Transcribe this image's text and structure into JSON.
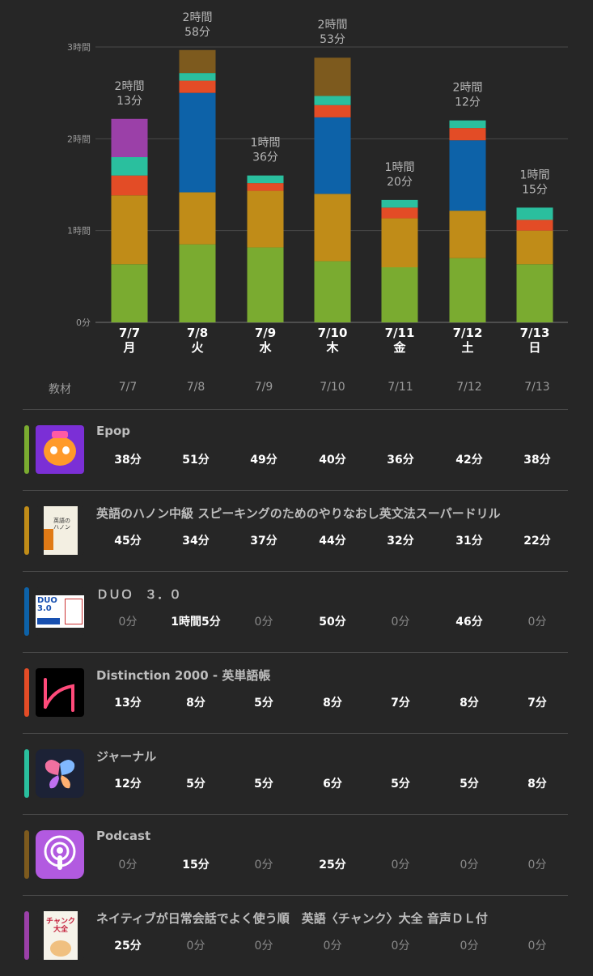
{
  "chart_data": {
    "type": "bar",
    "stacked": true,
    "categories": [
      "7/7",
      "7/8",
      "7/9",
      "7/10",
      "7/11",
      "7/12",
      "7/13"
    ],
    "weekdays": [
      "月",
      "火",
      "水",
      "木",
      "金",
      "土",
      "日"
    ],
    "y_ticks": [
      "0分",
      "1時間",
      "2時間",
      "3時間"
    ],
    "ylim": [
      0,
      180
    ],
    "totals": [
      [
        "2時間",
        "13分"
      ],
      [
        "2時間",
        "58分"
      ],
      [
        "1時間",
        "36分"
      ],
      [
        "2時間",
        "53分"
      ],
      [
        "1時間",
        "20分"
      ],
      [
        "2時間",
        "12分"
      ],
      [
        "1時間",
        "15分"
      ]
    ],
    "series": [
      {
        "color": "#7aab30",
        "values": [
          38,
          51,
          49,
          40,
          36,
          42,
          38
        ]
      },
      {
        "color": "#c08c18",
        "values": [
          45,
          34,
          37,
          44,
          32,
          31,
          22
        ]
      },
      {
        "color": "#0d62a8",
        "values": [
          0,
          65,
          0,
          50,
          0,
          46,
          0
        ]
      },
      {
        "color": "#e34c26",
        "values": [
          13,
          8,
          5,
          8,
          7,
          8,
          7
        ]
      },
      {
        "color": "#2abf9e",
        "values": [
          12,
          5,
          5,
          6,
          5,
          5,
          8
        ]
      },
      {
        "color": "#7d5a1e",
        "values": [
          0,
          15,
          0,
          25,
          0,
          0,
          0
        ]
      },
      {
        "color": "#9b40a8",
        "values": [
          25,
          0,
          0,
          0,
          0,
          0,
          0
        ]
      }
    ]
  },
  "table": {
    "header_label": "教材",
    "dates": [
      "7/7",
      "7/8",
      "7/9",
      "7/10",
      "7/11",
      "7/12",
      "7/13"
    ],
    "rows": [
      {
        "title": "Epop",
        "color": "#7aab30",
        "icon": "epop-fish-icon",
        "values": [
          "38分",
          "51分",
          "49分",
          "40分",
          "36分",
          "42分",
          "38分"
        ]
      },
      {
        "title": "英語のハノン中級 スピーキングのためのやりなおし英文法スーパードリル",
        "color": "#c08c18",
        "icon": "hanon-book-cover",
        "values": [
          "45分",
          "34分",
          "37分",
          "44分",
          "32分",
          "31分",
          "22分"
        ]
      },
      {
        "title": "ＤＵＯ　３．０",
        "color": "#0d62a8",
        "icon": "duo-book-cover",
        "values": [
          "0分",
          "1時間5分",
          "0分",
          "50分",
          "0分",
          "46分",
          "0分"
        ]
      },
      {
        "title": "Distinction 2000 - 英単語帳",
        "color": "#e34c26",
        "icon": "distinction-app-icon",
        "values": [
          "13分",
          "8分",
          "5分",
          "8分",
          "7分",
          "8分",
          "7分"
        ]
      },
      {
        "title": "ジャーナル",
        "color": "#2abf9e",
        "icon": "journal-butterfly-icon",
        "values": [
          "12分",
          "5分",
          "5分",
          "6分",
          "5分",
          "5分",
          "8分"
        ]
      },
      {
        "title": "Podcast",
        "color": "#7d5a1e",
        "icon": "podcast-icon",
        "values": [
          "0分",
          "15分",
          "0分",
          "25分",
          "0分",
          "0分",
          "0分"
        ]
      },
      {
        "title": "ネイティブが日常会話でよく使う順　英語〈チャンク〉大全 音声ＤＬ付",
        "color": "#9b40a8",
        "icon": "chunk-book-cover",
        "values": [
          "25分",
          "0分",
          "0分",
          "0分",
          "0分",
          "0分",
          "0分"
        ]
      }
    ]
  },
  "book_covers": {
    "hanon_text": "英語のハノン",
    "duo_text": "DUO 3.0",
    "chunk_text": "チャンク大全"
  }
}
